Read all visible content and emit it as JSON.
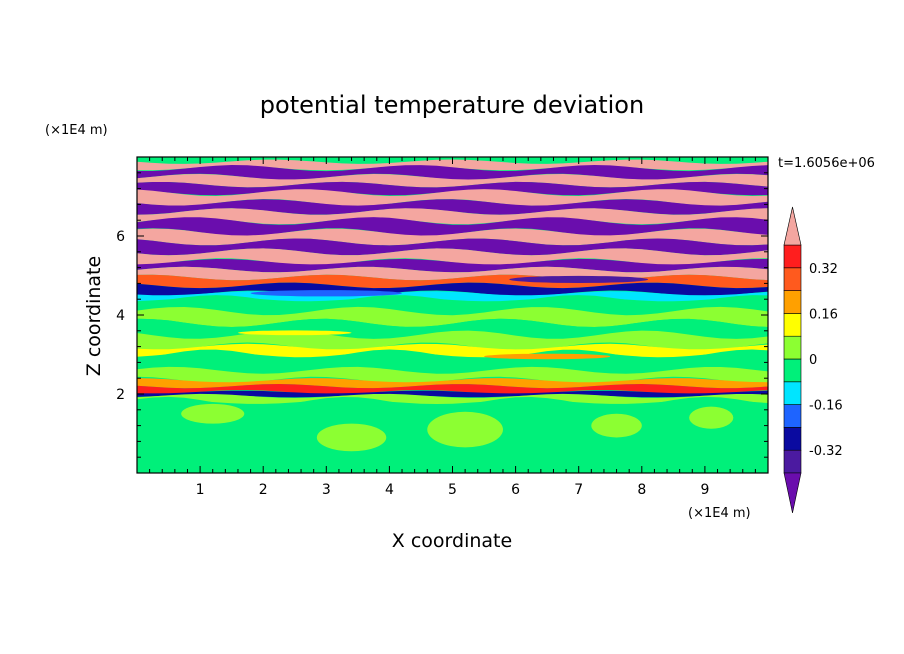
{
  "chart_data": {
    "type": "heatmap",
    "title": "potential temperature deviation",
    "xlabel": "X coordinate",
    "ylabel": "Z coordinate",
    "x_unit": "(×1E4 m)",
    "z_unit": "(×1E4 m)",
    "time_label": "t=1.6056e+06",
    "xlim": [
      0,
      10
    ],
    "ylim": [
      0,
      8
    ],
    "x_ticks": [
      "1",
      "2",
      "3",
      "4",
      "5",
      "6",
      "7",
      "8",
      "9"
    ],
    "y_ticks": [
      "2",
      "4",
      "6"
    ],
    "colorbar": {
      "levels": [
        -0.4,
        -0.32,
        -0.24,
        -0.16,
        -0.08,
        0,
        0.08,
        0.16,
        0.24,
        0.32,
        0.4
      ],
      "colors": [
        "#6a0dad",
        "#4b1aa0",
        "#0a0aa0",
        "#1e64ff",
        "#00e5ff",
        "#00f07a",
        "#8cff32",
        "#ffff00",
        "#ffa000",
        "#ff5a1e",
        "#ff1e1e",
        "#f4a6a0"
      ],
      "tick_labels": [
        "0.32",
        "0.16",
        "0",
        "-0.16",
        "-0.32"
      ],
      "tick_values": [
        0.32,
        0.16,
        0,
        -0.16,
        -0.32
      ]
    },
    "layers": [
      {
        "z": [
          7.72,
          7.88
        ],
        "cls": 11
      },
      {
        "z": [
          7.5,
          7.72
        ],
        "cls": 0
      },
      {
        "z": [
          7.3,
          7.5
        ],
        "cls": 11
      },
      {
        "z": [
          7.1,
          7.3
        ],
        "cls": 0
      },
      {
        "z": [
          6.85,
          7.1
        ],
        "cls": 11
      },
      {
        "z": [
          6.62,
          6.85
        ],
        "cls": 0
      },
      {
        "z": [
          6.38,
          6.62
        ],
        "cls": 11
      },
      {
        "z": [
          6.1,
          6.38
        ],
        "cls": 0
      },
      {
        "z": [
          5.85,
          6.1
        ],
        "cls": 11
      },
      {
        "z": [
          5.6,
          5.85
        ],
        "cls": 0
      },
      {
        "z": [
          5.35,
          5.6
        ],
        "cls": 11
      },
      {
        "z": [
          5.15,
          5.35
        ],
        "cls": 0
      },
      {
        "z": [
          4.95,
          5.15
        ],
        "cls": 11
      },
      {
        "z": [
          4.75,
          4.95
        ],
        "cls": 9
      },
      {
        "z": [
          4.55,
          4.75
        ],
        "cls": 2
      },
      {
        "z": [
          4.4,
          4.55
        ],
        "cls": 4
      },
      {
        "z": [
          4.1,
          4.4
        ],
        "cls": 5
      },
      {
        "z": [
          3.8,
          4.1
        ],
        "cls": 6
      },
      {
        "z": [
          3.5,
          3.8
        ],
        "cls": 5
      },
      {
        "z": [
          3.2,
          3.5
        ],
        "cls": 6
      },
      {
        "z": [
          3.0,
          3.2
        ],
        "cls": 7
      },
      {
        "z": [
          2.6,
          3.0
        ],
        "cls": 5
      },
      {
        "z": [
          2.35,
          2.6
        ],
        "cls": 6
      },
      {
        "z": [
          2.2,
          2.35
        ],
        "cls": 8
      },
      {
        "z": [
          2.05,
          2.2
        ],
        "cls": 10
      },
      {
        "z": [
          1.95,
          2.05
        ],
        "cls": 2
      },
      {
        "z": [
          1.8,
          1.95
        ],
        "cls": 6
      },
      {
        "z": [
          0,
          1.8
        ],
        "cls": 5
      }
    ],
    "blobs": [
      {
        "x": 3.4,
        "z": 0.9,
        "rx": 0.55,
        "rz": 0.35,
        "cls": 6
      },
      {
        "x": 5.2,
        "z": 1.1,
        "rx": 0.6,
        "rz": 0.45,
        "cls": 6
      },
      {
        "x": 7.6,
        "z": 1.2,
        "rx": 0.4,
        "rz": 0.3,
        "cls": 6
      },
      {
        "x": 1.2,
        "z": 1.5,
        "rx": 0.5,
        "rz": 0.25,
        "cls": 6
      },
      {
        "x": 9.1,
        "z": 1.4,
        "rx": 0.35,
        "rz": 0.28,
        "cls": 6
      },
      {
        "x": 3.0,
        "z": 4.55,
        "rx": 1.2,
        "rz": 0.08,
        "cls": 3
      },
      {
        "x": 7.0,
        "z": 4.9,
        "rx": 1.1,
        "rz": 0.09,
        "cls": 1
      },
      {
        "x": 6.5,
        "z": 2.95,
        "rx": 1.0,
        "rz": 0.07,
        "cls": 8
      },
      {
        "x": 2.5,
        "z": 3.55,
        "rx": 0.9,
        "rz": 0.06,
        "cls": 7
      }
    ]
  }
}
